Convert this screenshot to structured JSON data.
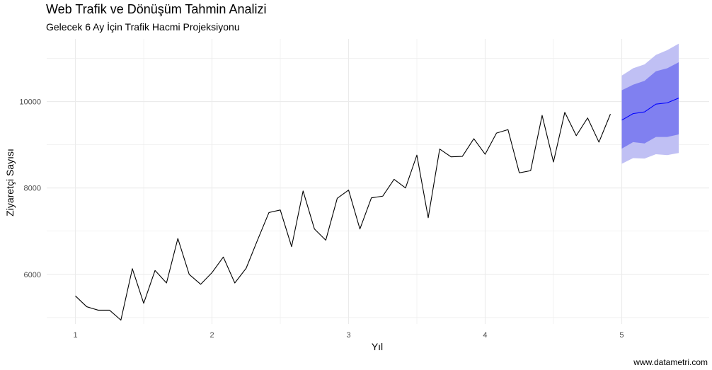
{
  "title": "Web Trafik ve Dönüşüm Tahmin Analizi",
  "subtitle": "Gelecek 6 Ay İçin Trafik Hacmi Projeksiyonu",
  "caption": "www.datametri.com",
  "chart_data": {
    "type": "line",
    "title": "Web Trafik ve Dönüşüm Tahmin Analizi",
    "subtitle": "Gelecek 6 Ay İçin Trafik Hacmi Projeksiyonu",
    "xlabel": "Yıl",
    "ylabel": "Ziyaretçi Sayısı",
    "xlim": [
      0.79,
      5.64
    ],
    "ylim": [
      4850,
      11450
    ],
    "x_ticks": [
      1,
      2,
      3,
      4,
      5
    ],
    "y_ticks": [
      6000,
      8000,
      10000
    ],
    "grid": true,
    "colors": {
      "history_line": "#000000",
      "forecast_line": "#0000ff",
      "band_80": "#8080f0",
      "band_95": "#c0c0f4",
      "grid": "#ebebeb"
    },
    "series": [
      {
        "values": [
          [
            1.0,
            5500
          ],
          [
            1.083,
            5250
          ],
          [
            1.167,
            5170
          ],
          [
            1.25,
            5170
          ],
          [
            1.333,
            4940
          ],
          [
            1.417,
            6130
          ],
          [
            1.5,
            5330
          ],
          [
            1.583,
            6090
          ],
          [
            1.667,
            5800
          ],
          [
            1.75,
            6830
          ],
          [
            1.833,
            6000
          ],
          [
            1.917,
            5770
          ],
          [
            2.0,
            6040
          ],
          [
            2.083,
            6400
          ],
          [
            2.167,
            5800
          ],
          [
            2.25,
            6140
          ],
          [
            2.333,
            6790
          ],
          [
            2.417,
            7430
          ],
          [
            2.5,
            7490
          ],
          [
            2.583,
            6640
          ],
          [
            2.667,
            7930
          ],
          [
            2.75,
            7050
          ],
          [
            2.833,
            6790
          ],
          [
            2.917,
            7760
          ],
          [
            3.0,
            7950
          ],
          [
            3.083,
            7050
          ],
          [
            3.167,
            7770
          ],
          [
            3.25,
            7810
          ],
          [
            3.333,
            8200
          ],
          [
            3.417,
            8000
          ],
          [
            3.5,
            8760
          ],
          [
            3.583,
            7310
          ],
          [
            3.667,
            8900
          ],
          [
            3.75,
            8720
          ],
          [
            3.833,
            8730
          ],
          [
            3.917,
            9140
          ],
          [
            4.0,
            8780
          ],
          [
            4.083,
            9270
          ],
          [
            4.167,
            9350
          ],
          [
            4.25,
            8350
          ],
          [
            4.333,
            8400
          ],
          [
            4.417,
            9680
          ],
          [
            4.5,
            8600
          ],
          [
            4.583,
            9750
          ],
          [
            4.667,
            9210
          ],
          [
            4.75,
            9620
          ],
          [
            4.833,
            9060
          ],
          [
            4.917,
            9710
          ]
        ]
      },
      {
        "values": [
          [
            5.0,
            9570
          ],
          [
            5.083,
            9720
          ],
          [
            5.167,
            9760
          ],
          [
            5.25,
            9940
          ],
          [
            5.333,
            9970
          ],
          [
            5.417,
            10080
          ]
        ],
        "lo80": [
          8910,
          9060,
          9030,
          9180,
          9180,
          9240
        ],
        "hi80": [
          10260,
          10390,
          10480,
          10700,
          10770,
          10910
        ],
        "lo95": [
          8560,
          8690,
          8680,
          8780,
          8760,
          8810
        ],
        "hi95": [
          10600,
          10770,
          10860,
          11080,
          11190,
          11340
        ]
      }
    ]
  }
}
